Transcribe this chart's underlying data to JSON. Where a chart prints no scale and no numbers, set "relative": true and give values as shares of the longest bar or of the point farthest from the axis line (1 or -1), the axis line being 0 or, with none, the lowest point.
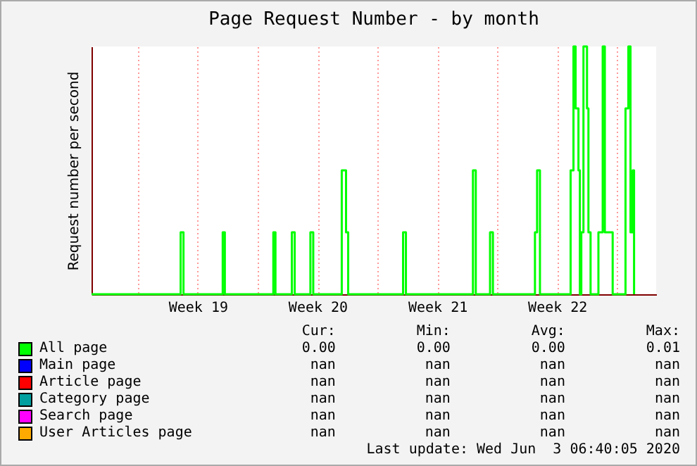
{
  "chart_data": {
    "type": "step",
    "title": "Page Request Number - by month",
    "ylabel": "Request number per second",
    "relative": true,
    "xlim": [
      "2020-05-01T07:00",
      "2020-06-03T07:00"
    ],
    "xticks": [
      {
        "value": "2020-05-04T00:00",
        "label": null
      },
      {
        "value": "2020-05-07T12:00",
        "label": "Week 19"
      },
      {
        "value": "2020-05-11T00:00",
        "label": null
      },
      {
        "value": "2020-05-14T12:00",
        "label": "Week 20"
      },
      {
        "value": "2020-05-18T00:00",
        "label": null
      },
      {
        "value": "2020-05-21T12:00",
        "label": "Week 21"
      },
      {
        "value": "2020-05-25T00:00",
        "label": null
      },
      {
        "value": "2020-05-28T12:00",
        "label": "Week 22"
      },
      {
        "value": "2020-06-01T00:00",
        "label": null
      }
    ],
    "grid": "x",
    "legend": "bottom",
    "series": [
      {
        "name": "All page",
        "color": "#00ff00",
        "x": [
          "2020-05-01T07:00",
          "2020-05-06T12:00",
          "2020-05-06T16:00",
          "2020-05-08T23:00",
          "2020-05-09T02:00",
          "2020-05-11T22:00",
          "2020-05-12T01:00",
          "2020-05-13T00:00",
          "2020-05-13T04:00",
          "2020-05-14T02:00",
          "2020-05-14T06:00",
          "2020-05-15T22:00",
          "2020-05-16T04:00",
          "2020-05-16T07:00",
          "2020-05-19T12:00",
          "2020-05-19T16:00",
          "2020-05-23T14:00",
          "2020-05-23T18:00",
          "2020-05-24T14:00",
          "2020-05-24T18:00",
          "2020-05-27T05:00",
          "2020-05-27T08:00",
          "2020-05-27T12:00",
          "2020-05-29T07:00",
          "2020-05-29T11:00",
          "2020-05-29T14:00",
          "2020-05-29T18:00",
          "2020-05-29T20:00",
          "2020-05-29T22:00",
          "2020-05-30T01:00",
          "2020-05-30T06:00",
          "2020-05-30T08:00",
          "2020-05-30T11:00",
          "2020-05-30T22:00",
          "2020-05-31T04:00",
          "2020-05-31T07:00",
          "2020-05-31T18:00",
          "2020-06-01T12:00",
          "2020-06-01T16:00",
          "2020-06-01T19:00",
          "2020-06-01T22:00",
          "2020-06-02T00:00"
        ],
        "values": [
          0,
          0.25,
          0,
          0.25,
          0,
          0.25,
          0,
          0.25,
          0,
          0.25,
          0,
          0.5,
          0.25,
          0,
          0.25,
          0,
          0.5,
          0,
          0.25,
          0,
          0.25,
          0.5,
          0,
          0.5,
          1,
          0.75,
          0.5,
          0,
          0.25,
          1,
          0.75,
          0.25,
          0,
          0.25,
          1,
          0.25,
          0,
          0.75,
          1,
          0.25,
          0.5,
          0
        ]
      },
      {
        "name": "Main page",
        "color": "#0000ff"
      },
      {
        "name": "Article page",
        "color": "#ff0000"
      },
      {
        "name": "Category page",
        "color": "#00a0a0"
      },
      {
        "name": "Search page",
        "color": "#ff00ff"
      },
      {
        "name": "User Articles page",
        "color": "#ffaa00"
      }
    ],
    "annotations": [
      "Cur:",
      "Min:",
      "Avg:",
      "Max:",
      "0.00",
      "0.00",
      "0.00",
      "0.01",
      "nan",
      "nan",
      "nan",
      "nan",
      "nan",
      "nan",
      "nan",
      "nan",
      "nan",
      "nan",
      "nan",
      "nan",
      "nan",
      "nan",
      "nan",
      "nan",
      "nan",
      "nan",
      "nan",
      "nan",
      "Last update: Wed Jun  3 06:40:05 2020"
    ]
  }
}
